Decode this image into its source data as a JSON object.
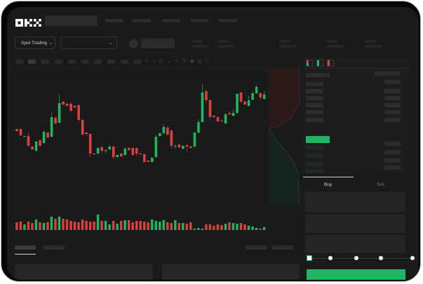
{
  "header": {
    "logo": "OKX",
    "market_dropdown": {
      "label": "Spot Trading",
      "icon": "chevron-down-icon"
    },
    "pair_dropdown": {
      "label": "",
      "icon": "chevron-down-icon"
    }
  },
  "trade_panel": {
    "tabs": [
      {
        "label": "Buy",
        "active": true
      },
      {
        "label": "Sell",
        "active": false
      }
    ],
    "slider_percent": 0,
    "submit_color": "#22b462"
  },
  "colors": {
    "up": "#22b462",
    "down": "#d9403f",
    "background": "#1a1a1a"
  },
  "chart_data": {
    "type": "candlestick",
    "title": "",
    "xlabel": "",
    "ylabel": "",
    "grid": false,
    "ohlc": [
      [
        68,
        69,
        64,
        65
      ],
      [
        68,
        69,
        58,
        59
      ],
      [
        57,
        58,
        57,
        58
      ],
      [
        58,
        63,
        43,
        44
      ],
      [
        43,
        44,
        38,
        39
      ],
      [
        37,
        51,
        35,
        50
      ],
      [
        52,
        53,
        43,
        44
      ],
      [
        48,
        66,
        47,
        64
      ],
      [
        63,
        64,
        55,
        56
      ],
      [
        57,
        92,
        56,
        85
      ],
      [
        84,
        86,
        75,
        76
      ],
      [
        77,
        117,
        76,
        105
      ],
      [
        107,
        108,
        102,
        103
      ],
      [
        104,
        106,
        100,
        101
      ],
      [
        104,
        106,
        93,
        94
      ],
      [
        101,
        102,
        98,
        99
      ],
      [
        102,
        103,
        80,
        81
      ],
      [
        81,
        82,
        59,
        60
      ],
      [
        63,
        64,
        59,
        61
      ],
      [
        61,
        62,
        28,
        33
      ],
      [
        33,
        34,
        31,
        32
      ],
      [
        33,
        42,
        31,
        41
      ],
      [
        42,
        44,
        34,
        37
      ],
      [
        37,
        39,
        33,
        38
      ],
      [
        39,
        45,
        38,
        43
      ],
      [
        43,
        44,
        25,
        28
      ],
      [
        28,
        32,
        27,
        31
      ],
      [
        33,
        34,
        28,
        29
      ],
      [
        31,
        42,
        30,
        40
      ],
      [
        41,
        42,
        37,
        38
      ],
      [
        41,
        42,
        30,
        31
      ],
      [
        41,
        42,
        30,
        33
      ],
      [
        33,
        34,
        32,
        32
      ],
      [
        32,
        33,
        20,
        21
      ],
      [
        23,
        24,
        21,
        21
      ],
      [
        21,
        28,
        20,
        27
      ],
      [
        28,
        60,
        27,
        57
      ],
      [
        58,
        63,
        57,
        62
      ],
      [
        62,
        75,
        61,
        71
      ],
      [
        70,
        72,
        59,
        60
      ],
      [
        66,
        67,
        40,
        44
      ],
      [
        43,
        46,
        40,
        44
      ],
      [
        46,
        47,
        41,
        42
      ],
      [
        40,
        45,
        39,
        44
      ],
      [
        45,
        46,
        35,
        43
      ],
      [
        43,
        44,
        40,
        41
      ],
      [
        43,
        64,
        41,
        63
      ],
      [
        63,
        82,
        62,
        78
      ],
      [
        78,
        133,
        77,
        120
      ],
      [
        122,
        124,
        106,
        109
      ],
      [
        109,
        110,
        82,
        85
      ],
      [
        87,
        88,
        84,
        85
      ],
      [
        85,
        86,
        78,
        79
      ],
      [
        80,
        82,
        78,
        79
      ],
      [
        76,
        91,
        75,
        89
      ],
      [
        91,
        93,
        88,
        89
      ],
      [
        87,
        96,
        86,
        91
      ],
      [
        91,
        119,
        90,
        118
      ],
      [
        120,
        121,
        105,
        107
      ],
      [
        107,
        108,
        102,
        103
      ],
      [
        101,
        115,
        100,
        109
      ],
      [
        110,
        122,
        109,
        119
      ],
      [
        119,
        131,
        118,
        128
      ],
      [
        119,
        120,
        109,
        113
      ],
      [
        111,
        122,
        110,
        117
      ]
    ],
    "volume": [
      11,
      12,
      8,
      12,
      10,
      15,
      11,
      10,
      11,
      19,
      16,
      19,
      16,
      15,
      13,
      12,
      11,
      15,
      13,
      12,
      12,
      22,
      13,
      13,
      8,
      13,
      9,
      13,
      14,
      14,
      11,
      13,
      13,
      12,
      11,
      15,
      13,
      12,
      14,
      11,
      10,
      14,
      10,
      10,
      9,
      11,
      2,
      3,
      2,
      8,
      8,
      6,
      8,
      7,
      9,
      11,
      10,
      9,
      10,
      8,
      6,
      5,
      3,
      2,
      4
    ]
  }
}
